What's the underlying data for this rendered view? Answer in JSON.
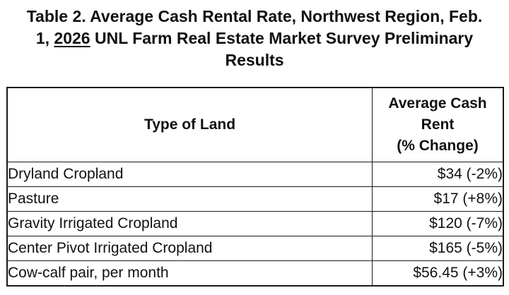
{
  "title": {
    "line1": "Table 2. Average Cash Rental Rate, Northwest Region, Feb.",
    "line2_prefix": "1, ",
    "line2_underlined": "2026",
    "line2_suffix": " UNL Farm Real Estate Market Survey Preliminary",
    "line3": "Results"
  },
  "table": {
    "headers": {
      "type_of_land": "Type of Land",
      "rent_line1": "Average Cash",
      "rent_line2": "Rent",
      "rent_line3": "(% Change)"
    },
    "rows": [
      {
        "land": "Dryland Cropland",
        "rent": "$34 (-2%)"
      },
      {
        "land": "Pasture",
        "rent": "$17 (+8%)"
      },
      {
        "land": "Gravity Irrigated Cropland",
        "rent": "$120 (-7%)"
      },
      {
        "land": "Center Pivot Irrigated Cropland",
        "rent": "$165 (-5%)"
      },
      {
        "land": "Cow-calf pair, per month",
        "rent": "$56.45 (+3%)"
      }
    ]
  }
}
